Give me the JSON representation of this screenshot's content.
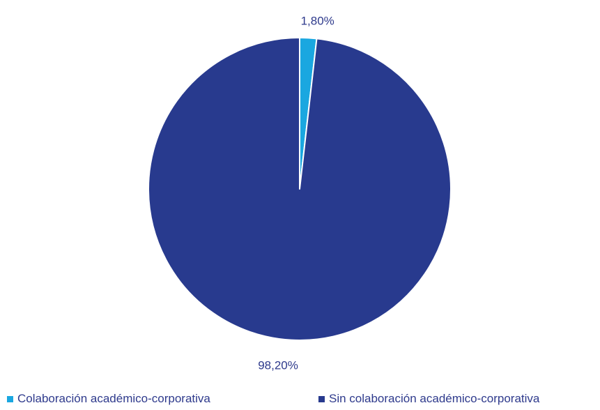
{
  "chart_data": {
    "type": "pie",
    "title": "",
    "categories": [
      "Colaboración académico-corporativa",
      "Sin colaboración académico-corporativa"
    ],
    "values": [
      1.8,
      98.2
    ],
    "data_labels": [
      "1,80%",
      "98,20%"
    ],
    "colors": [
      "#1aa7e0",
      "#283a8e"
    ],
    "legend_position": "bottom",
    "start_angle": "12 o'clock, clockwise"
  }
}
